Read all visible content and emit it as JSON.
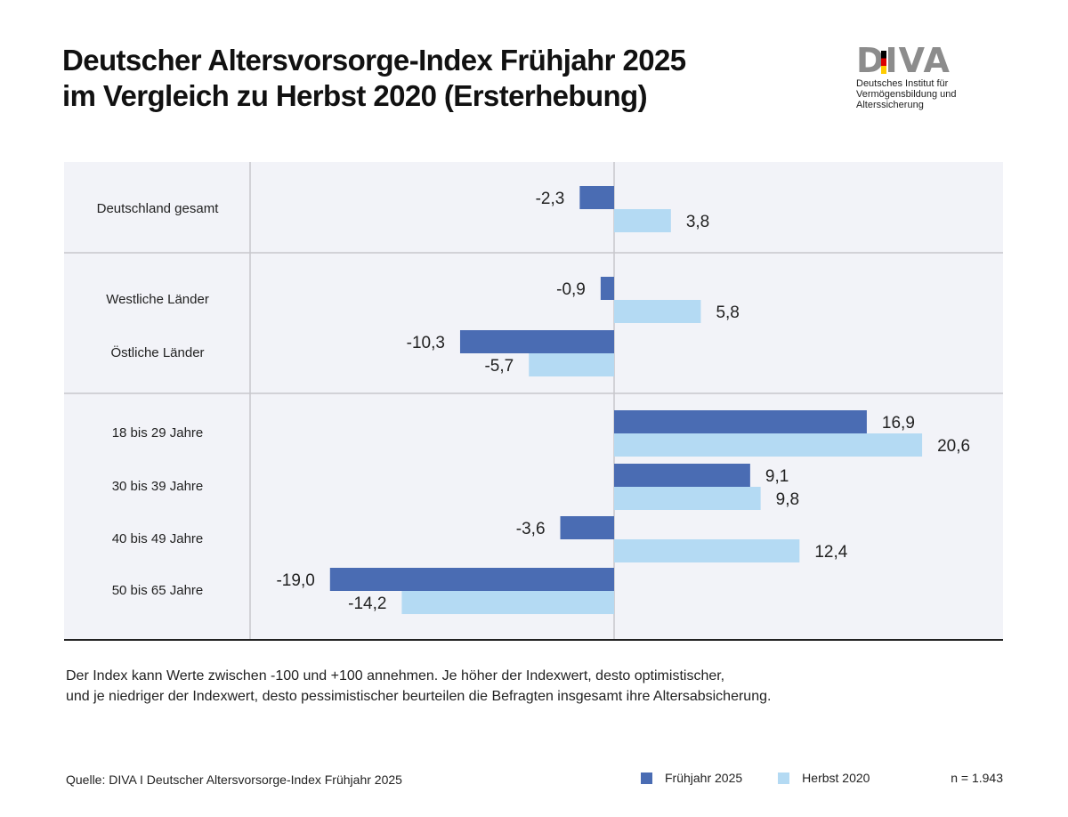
{
  "title": {
    "line1": "Deutscher Altersvorsorge-Index Frühjahr 2025",
    "line2": "im Vergleich zu Herbst 2020 (Ersterhebung)"
  },
  "logo": {
    "word": "DIVA",
    "subtitle_line1": "Deutsches Institut für",
    "subtitle_line2": "Vermögensbildung und Alterssicherung"
  },
  "footnote": {
    "line1": "Der Index kann Werte zwischen -100 und +100 annehmen. Je höher der Indexwert, desto optimistischer,",
    "line2": "und je niedriger der Indexwert, desto pessimistischer beurteilen die Befragten insgesamt ihre Altersabsicherung."
  },
  "source": "Quelle: DIVA I Deutscher Altersvorsorge-Index Frühjahr 2025",
  "sample": "n = 1.943",
  "colors": {
    "fruehjahr": "#4a6cb3",
    "herbst": "#b4daf3",
    "plot_bg": "#f2f3f8",
    "separator": "#c8c8cc",
    "baseline": "#222222"
  },
  "chart_data": {
    "type": "bar",
    "orientation": "horizontal",
    "categories": [
      "Deutschland gesamt",
      "Westliche Länder",
      "Östliche Länder",
      "18 bis 29 Jahre",
      "30 bis 39 Jahre",
      "40 bis 49 Jahre",
      "50 bis 65 Jahre"
    ],
    "groups": [
      [
        "Deutschland gesamt"
      ],
      [
        "Westliche Länder",
        "Östliche Länder"
      ],
      [
        "18 bis 29 Jahre",
        "30 bis 39 Jahre",
        "40 bis 49 Jahre",
        "50 bis 65 Jahre"
      ]
    ],
    "series": [
      {
        "name": "Frühjahr 2025",
        "values": [
          -2.3,
          -0.9,
          -10.3,
          16.9,
          9.1,
          -3.6,
          -19.0
        ],
        "labels": [
          "-2,3",
          "-0,9",
          "-10,3",
          "16,9",
          "9,1",
          "-3,6",
          "-19,0"
        ]
      },
      {
        "name": "Herbst 2020",
        "values": [
          3.8,
          5.8,
          -5.7,
          20.6,
          9.8,
          12.4,
          -14.2
        ],
        "labels": [
          "3,8",
          "5,8",
          "-5,7",
          "20,6",
          "9,8",
          "12,4",
          "-14,2"
        ]
      }
    ],
    "legend_position": "bottom-right",
    "grid": false
  }
}
